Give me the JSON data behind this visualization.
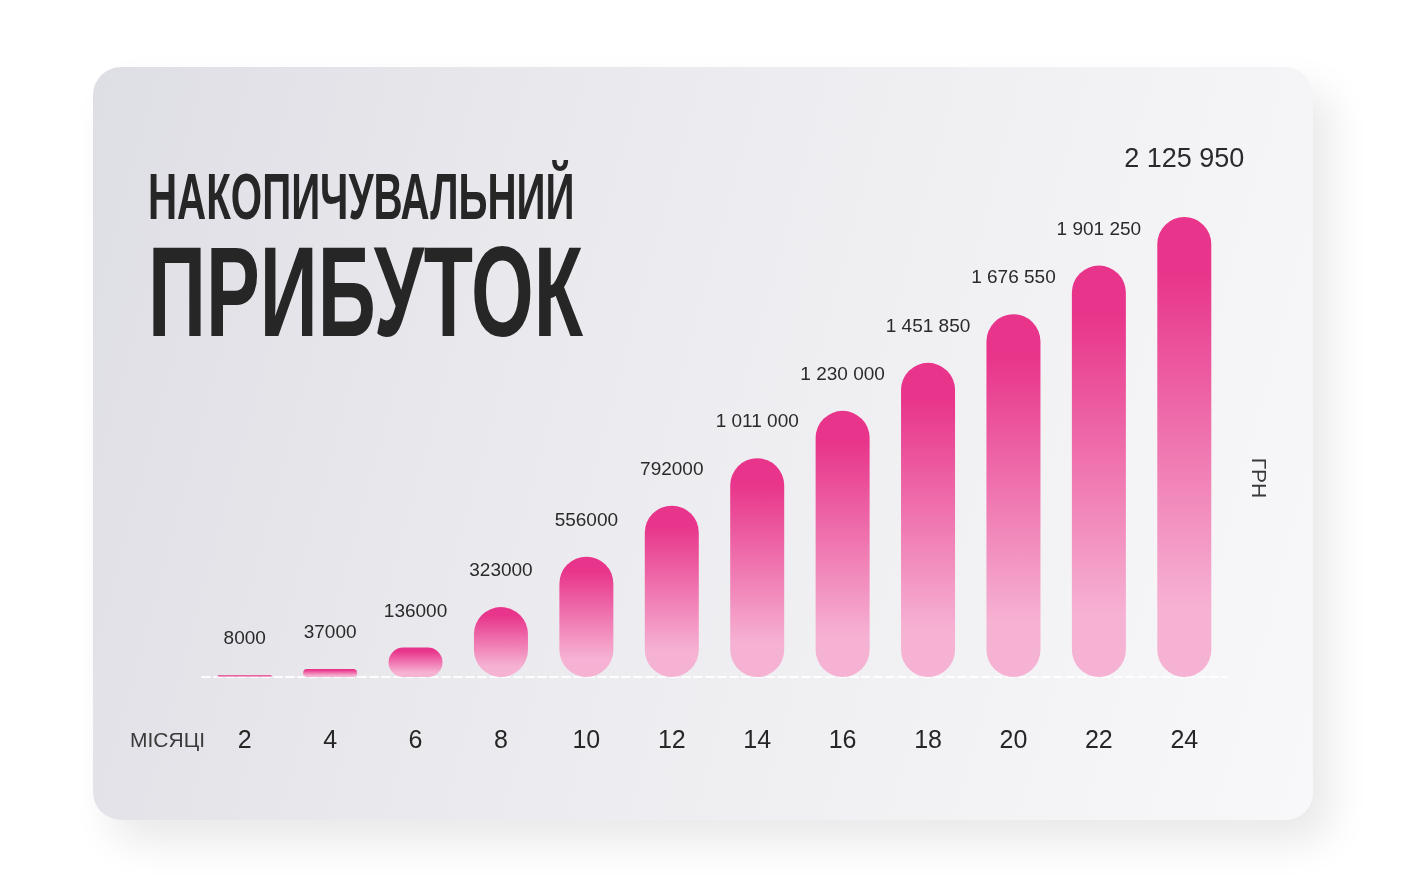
{
  "chart_data": {
    "type": "bar",
    "title": "НАКОПИЧУВАЛЬНИЙ ПРИБУТОК",
    "xlabel": "МІСЯЦІ",
    "ylabel": "ГРН",
    "x": [
      2,
      4,
      6,
      8,
      10,
      12,
      14,
      16,
      18,
      20,
      22,
      24
    ],
    "xlim": [
      1,
      25
    ],
    "xticks": [
      2,
      4,
      6,
      8,
      10,
      12,
      14,
      16,
      18,
      20,
      22,
      24
    ],
    "values": [
      8000,
      37000,
      136000,
      323000,
      556000,
      792000,
      1011000,
      1230000,
      1451850,
      1676550,
      1901250,
      2125950
    ],
    "value_labels": [
      "8000",
      "37000",
      "136000",
      "323000",
      "556000",
      "792000",
      "1 011 000",
      "1 230 000",
      "1 451 850",
      "1 676 550",
      "1 901 250",
      "2 125 950"
    ],
    "color": "#e8358b"
  }
}
